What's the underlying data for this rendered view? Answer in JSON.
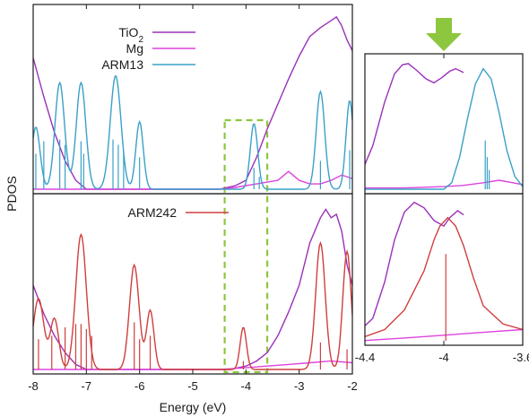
{
  "chart_data": [
    {
      "type": "line",
      "panel": "main-top",
      "xlabel": "Energy (eV)",
      "ylabel": "PDOS",
      "xlim": [
        -8,
        -2
      ],
      "x_ticks": [
        "-8",
        "-7",
        "-6",
        "-5",
        "-4",
        "-3",
        "-2"
      ],
      "highlight_box": {
        "x_range": [
          -4.4,
          -3.6
        ],
        "color": "#8dc63f",
        "style": "dashed"
      },
      "legend_position": "top-left",
      "series": [
        {
          "name": "TiO2",
          "label_base": "TiO",
          "label_sub": "2",
          "color": "#9b30b8",
          "points": [
            [
              -8.0,
              0.74
            ],
            [
              -7.8,
              0.52
            ],
            [
              -7.6,
              0.32
            ],
            [
              -7.4,
              0.16
            ],
            [
              -7.2,
              0.05
            ],
            [
              -7.0,
              0.0
            ],
            [
              -4.5,
              0.0
            ],
            [
              -4.2,
              0.02
            ],
            [
              -4.0,
              0.05
            ],
            [
              -3.8,
              0.18
            ],
            [
              -3.6,
              0.34
            ],
            [
              -3.4,
              0.48
            ],
            [
              -3.2,
              0.62
            ],
            [
              -3.0,
              0.75
            ],
            [
              -2.8,
              0.86
            ],
            [
              -2.6,
              0.91
            ],
            [
              -2.5,
              0.93
            ],
            [
              -2.4,
              0.95
            ],
            [
              -2.3,
              0.97
            ],
            [
              -2.2,
              0.92
            ],
            [
              -2.1,
              0.84
            ],
            [
              -2.0,
              0.78
            ]
          ]
        },
        {
          "name": "Mg",
          "color": "#dd44dd",
          "points": [
            [
              -8.0,
              0.0
            ],
            [
              -4.5,
              0.0
            ],
            [
              -4.2,
              0.01
            ],
            [
              -4.0,
              0.02
            ],
            [
              -3.8,
              0.03
            ],
            [
              -3.6,
              0.04
            ],
            [
              -3.4,
              0.05
            ],
            [
              -3.2,
              0.1
            ],
            [
              -3.0,
              0.05
            ],
            [
              -2.8,
              0.03
            ],
            [
              -2.6,
              0.03
            ],
            [
              -2.4,
              0.05
            ],
            [
              -2.2,
              0.08
            ],
            [
              -2.0,
              0.06
            ]
          ]
        },
        {
          "name": "ARM13",
          "color": "#3aa0c8",
          "gaussians": [
            [
              -7.95,
              0.35,
              0.08
            ],
            [
              -7.5,
              0.6,
              0.09
            ],
            [
              -7.1,
              0.6,
              0.09
            ],
            [
              -6.45,
              0.64,
              0.1
            ],
            [
              -6.0,
              0.38,
              0.07
            ],
            [
              -3.85,
              0.37,
              0.07
            ],
            [
              -2.6,
              0.55,
              0.08
            ],
            [
              -2.05,
              0.5,
              0.07
            ]
          ],
          "sticks": [
            [
              -7.95,
              0.2
            ],
            [
              -7.8,
              0.27
            ],
            [
              -7.5,
              0.28
            ],
            [
              -7.4,
              0.25
            ],
            [
              -7.1,
              0.27
            ],
            [
              -7.05,
              0.2
            ],
            [
              -6.5,
              0.28
            ],
            [
              -6.4,
              0.25
            ],
            [
              -6.3,
              0.22
            ],
            [
              -6.0,
              0.18
            ],
            [
              -3.85,
              0.12
            ],
            [
              -3.75,
              0.07
            ],
            [
              -2.6,
              0.16
            ],
            [
              -2.05,
              0.22
            ]
          ]
        }
      ]
    },
    {
      "type": "line",
      "panel": "main-bottom",
      "xlim": [
        -8,
        -2
      ],
      "legend_position": "top-left",
      "series": [
        {
          "name": "TiO2",
          "color": "#9b30b8",
          "points": [
            [
              -8.0,
              0.5
            ],
            [
              -7.8,
              0.33
            ],
            [
              -7.6,
              0.2
            ],
            [
              -7.4,
              0.1
            ],
            [
              -7.2,
              0.03
            ],
            [
              -7.0,
              0.0
            ],
            [
              -4.3,
              0.0
            ],
            [
              -4.0,
              0.02
            ],
            [
              -3.8,
              0.05
            ],
            [
              -3.6,
              0.1
            ],
            [
              -3.4,
              0.2
            ],
            [
              -3.2,
              0.34
            ],
            [
              -3.0,
              0.5
            ],
            [
              -2.8,
              0.75
            ],
            [
              -2.6,
              0.9
            ],
            [
              -2.5,
              0.95
            ],
            [
              -2.4,
              0.9
            ],
            [
              -2.3,
              0.92
            ],
            [
              -2.2,
              0.82
            ],
            [
              -2.1,
              0.62
            ],
            [
              -2.0,
              0.5
            ]
          ]
        },
        {
          "name": "Mg",
          "color": "#dd44dd",
          "points": [
            [
              -8.0,
              0.0
            ],
            [
              -4.5,
              0.0
            ],
            [
              -4.0,
              0.01
            ],
            [
              -3.6,
              0.02
            ],
            [
              -3.2,
              0.03
            ],
            [
              -2.8,
              0.04
            ],
            [
              -2.4,
              0.05
            ],
            [
              -2.0,
              0.04
            ]
          ]
        },
        {
          "name": "ARM242",
          "color": "#d03e3e",
          "gaussians": [
            [
              -7.9,
              0.42,
              0.1
            ],
            [
              -7.6,
              0.3,
              0.08
            ],
            [
              -7.1,
              0.8,
              0.1
            ],
            [
              -6.1,
              0.62,
              0.09
            ],
            [
              -5.8,
              0.35,
              0.07
            ],
            [
              -4.05,
              0.25,
              0.06
            ],
            [
              -2.6,
              0.75,
              0.09
            ],
            [
              -2.1,
              0.7,
              0.08
            ]
          ],
          "sticks": [
            [
              -7.9,
              0.18
            ],
            [
              -7.65,
              0.2
            ],
            [
              -7.4,
              0.25
            ],
            [
              -7.2,
              0.27
            ],
            [
              -7.1,
              0.27
            ],
            [
              -7.0,
              0.24
            ],
            [
              -6.9,
              0.2
            ],
            [
              -6.1,
              0.28
            ],
            [
              -6.0,
              0.18
            ],
            [
              -5.8,
              0.2
            ],
            [
              -4.05,
              0.05
            ],
            [
              -2.6,
              0.16
            ],
            [
              -2.1,
              0.12
            ]
          ]
        }
      ]
    },
    {
      "type": "line",
      "panel": "zoom-top",
      "xlim": [
        -4.4,
        -3.6
      ],
      "x_ticks": [
        "-4.4",
        "-4",
        "-3.6"
      ],
      "arrow": {
        "x": -4.0,
        "color": "#8dc63f"
      },
      "series": [
        {
          "name": "TiO2",
          "color": "#9b30b8",
          "points": [
            [
              -4.42,
              0.12
            ],
            [
              -4.36,
              0.34
            ],
            [
              -4.3,
              0.68
            ],
            [
              -4.25,
              0.9
            ],
            [
              -4.21,
              0.97
            ],
            [
              -4.18,
              0.98
            ],
            [
              -4.14,
              0.93
            ],
            [
              -4.09,
              0.86
            ],
            [
              -4.05,
              0.83
            ],
            [
              -4.01,
              0.87
            ],
            [
              -3.97,
              0.92
            ],
            [
              -3.94,
              0.94
            ],
            [
              -3.9,
              0.91
            ]
          ]
        },
        {
          "name": "Mg",
          "color": "#dd44dd",
          "points": [
            [
              -4.42,
              0.01
            ],
            [
              -4.2,
              0.01
            ],
            [
              -4.0,
              0.02
            ],
            [
              -3.9,
              0.03
            ],
            [
              -3.8,
              0.05
            ],
            [
              -3.72,
              0.07
            ],
            [
              -3.65,
              0.05
            ],
            [
              -3.58,
              0.03
            ]
          ]
        },
        {
          "name": "ARM13",
          "color": "#3aa0c8",
          "points": [
            [
              -4.42,
              0.0
            ],
            [
              -4.0,
              0.0
            ],
            [
              -3.96,
              0.05
            ],
            [
              -3.92,
              0.25
            ],
            [
              -3.88,
              0.55
            ],
            [
              -3.84,
              0.82
            ],
            [
              -3.8,
              0.94
            ],
            [
              -3.76,
              0.86
            ],
            [
              -3.72,
              0.6
            ],
            [
              -3.68,
              0.3
            ],
            [
              -3.64,
              0.1
            ],
            [
              -3.6,
              0.02
            ],
            [
              -3.58,
              0.0
            ]
          ],
          "sticks": [
            [
              -3.79,
              0.38
            ],
            [
              -3.78,
              0.25
            ],
            [
              -3.77,
              0.15
            ]
          ]
        }
      ]
    },
    {
      "type": "line",
      "panel": "zoom-bottom",
      "xlim": [
        -4.4,
        -3.6
      ],
      "series": [
        {
          "name": "TiO2",
          "color": "#9b30b8",
          "points": [
            [
              -4.42,
              0.08
            ],
            [
              -4.36,
              0.16
            ],
            [
              -4.3,
              0.42
            ],
            [
              -4.25,
              0.72
            ],
            [
              -4.2,
              0.92
            ],
            [
              -4.15,
              0.99
            ],
            [
              -4.1,
              0.95
            ],
            [
              -4.05,
              0.86
            ],
            [
              -4.0,
              0.82
            ],
            [
              -3.97,
              0.88
            ],
            [
              -3.93,
              0.93
            ],
            [
              -3.9,
              0.9
            ]
          ]
        },
        {
          "name": "Mg",
          "color": "#dd44dd",
          "points": [
            [
              -4.42,
              0.0
            ],
            [
              -4.2,
              0.02
            ],
            [
              -4.0,
              0.04
            ],
            [
              -3.8,
              0.06
            ],
            [
              -3.6,
              0.08
            ],
            [
              -3.58,
              0.08
            ]
          ]
        },
        {
          "name": "ARM242",
          "color": "#d03e3e",
          "points": [
            [
              -4.42,
              0.02
            ],
            [
              -4.3,
              0.08
            ],
            [
              -4.2,
              0.22
            ],
            [
              -4.1,
              0.5
            ],
            [
              -4.05,
              0.72
            ],
            [
              -4.02,
              0.82
            ],
            [
              -3.98,
              0.88
            ],
            [
              -3.94,
              0.82
            ],
            [
              -3.9,
              0.68
            ],
            [
              -3.85,
              0.45
            ],
            [
              -3.8,
              0.25
            ],
            [
              -3.7,
              0.12
            ],
            [
              -3.6,
              0.08
            ],
            [
              -3.58,
              0.07
            ]
          ],
          "sticks": [
            [
              -3.99,
              0.62
            ]
          ]
        }
      ]
    }
  ]
}
